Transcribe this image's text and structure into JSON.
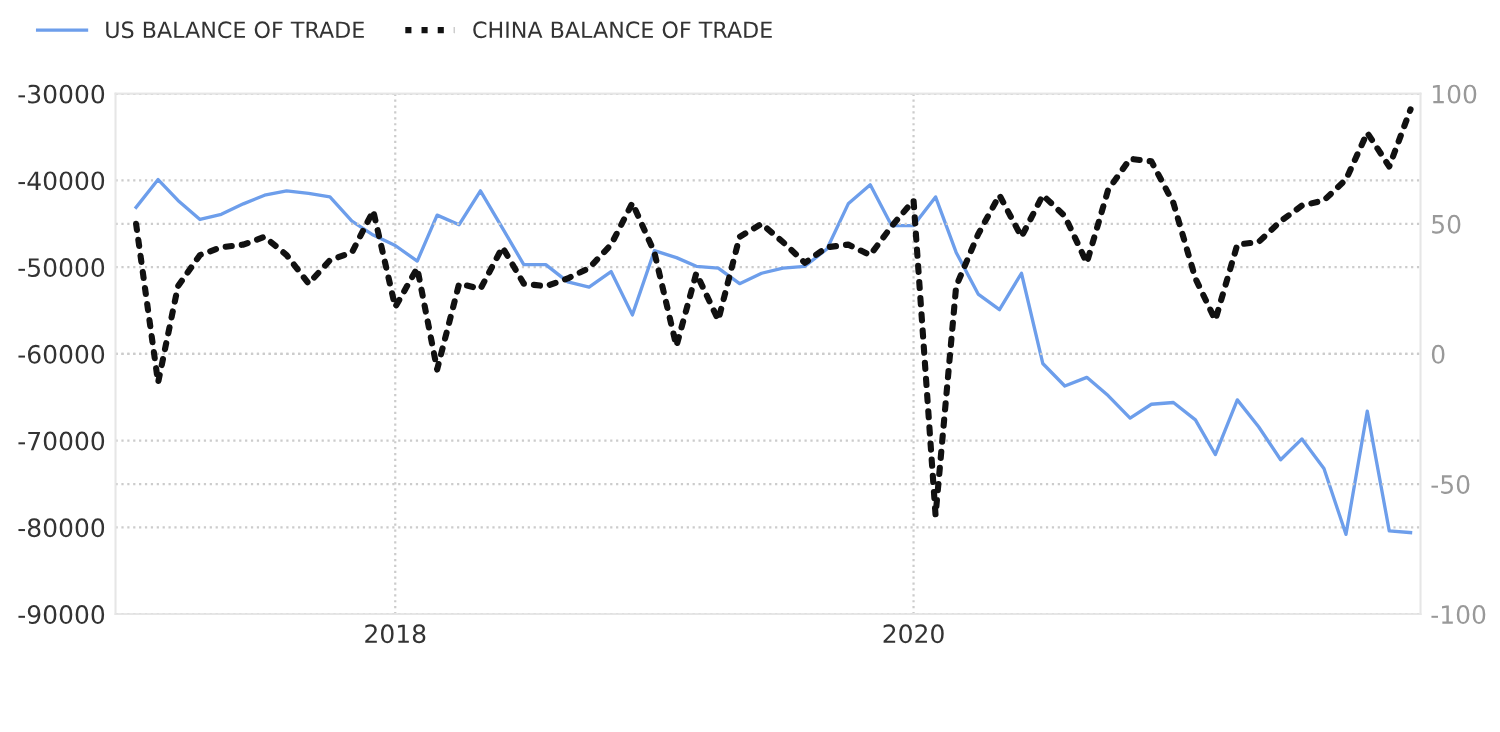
{
  "chart_data": {
    "type": "line",
    "x": [
      "2017-01",
      "2017-02",
      "2017-03",
      "2017-04",
      "2017-05",
      "2017-06",
      "2017-07",
      "2017-08",
      "2017-09",
      "2017-10",
      "2017-11",
      "2017-12",
      "2018-01",
      "2018-02",
      "2018-03",
      "2018-04",
      "2018-05",
      "2018-06",
      "2018-07",
      "2018-08",
      "2018-09",
      "2018-10",
      "2018-11",
      "2018-12",
      "2019-01",
      "2019-02",
      "2019-03",
      "2019-04",
      "2019-05",
      "2019-06",
      "2019-07",
      "2019-08",
      "2019-09",
      "2019-10",
      "2019-11",
      "2019-12",
      "2020-01",
      "2020-02",
      "2020-03",
      "2020-04",
      "2020-05",
      "2020-06",
      "2020-07",
      "2020-08",
      "2020-09",
      "2020-10",
      "2020-11",
      "2020-12",
      "2021-01",
      "2021-02",
      "2021-03",
      "2021-04",
      "2021-05",
      "2021-06",
      "2021-07",
      "2021-08",
      "2021-09",
      "2021-10",
      "2021-11",
      "2021-12"
    ],
    "series": [
      {
        "name": "US BALANCE OF TRADE",
        "color": "#6d9eeb",
        "line_style": "solid",
        "values": [
          -43100,
          -39900,
          -42300,
          -44500,
          -43900,
          -42700,
          -41700,
          -41200,
          -41500,
          -41900,
          -44700,
          -46300,
          -47500,
          -49300,
          -44000,
          -45100,
          -41200,
          -45500,
          -49700,
          -49700,
          -51700,
          -52300,
          -50500,
          -55500,
          -48100,
          -48900,
          -49900,
          -50100,
          -51900,
          -50700,
          -50100,
          -49900,
          -47900,
          -42700,
          -40500,
          -45200,
          -45200,
          -41900,
          -48300,
          -53100,
          -54900,
          -50700,
          -61100,
          -63700,
          -62700,
          -64800,
          -67400,
          -65800,
          -65600,
          -67600,
          -71600,
          -65300,
          -68400,
          -72200,
          -69800,
          -73200,
          -80800,
          -66600,
          -80400,
          -80600
        ]
      },
      {
        "name": "CHINA BALANCE OF TRADE",
        "color": "#111111",
        "line_style": "dotted",
        "axis": "y2",
        "values": [
          50,
          -11,
          26,
          38,
          41,
          42,
          45,
          38,
          27,
          36,
          39,
          55,
          18,
          33,
          -6,
          27,
          25,
          41,
          27,
          26,
          29,
          33,
          42,
          58,
          39,
          3,
          31,
          13,
          45,
          50,
          43,
          35,
          41,
          42,
          38,
          49,
          59,
          -62,
          26,
          46,
          61,
          45,
          61,
          53,
          35,
          63,
          75,
          74,
          58,
          29,
          13,
          42,
          43,
          51,
          57,
          59,
          67,
          85,
          72,
          94
        ]
      }
    ],
    "xlim": [
      "2016-12-03",
      "2021-12-15"
    ],
    "xticks": [
      {
        "value": "2018-01-01",
        "label": "2018"
      },
      {
        "value": "2020-01-01",
        "label": "2020"
      }
    ],
    "ylim": [
      -90000,
      -30000
    ],
    "yticks": [
      -90000,
      -80000,
      -70000,
      -60000,
      -50000,
      -40000,
      -30000
    ],
    "y2lim": [
      -100,
      100
    ],
    "y2ticks": [
      -100,
      -50,
      0,
      50,
      100
    ],
    "grid": true,
    "legend": "top left"
  }
}
